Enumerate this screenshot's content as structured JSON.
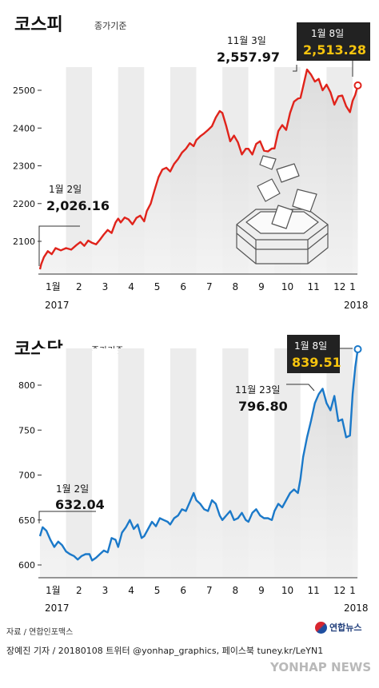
{
  "footer": {
    "source": "자료 / 연합인포맥스",
    "credit": "장예진 기자 / 20180108 트위터 @yonhap_graphics, 페이스북 tuney.kr/LeYN1",
    "logo": "연합뉴스",
    "watermark": "YONHAP NEWS"
  },
  "colors": {
    "kospi": "#e0231b",
    "kosdaq": "#1b79c9",
    "highlight_box": "#222222",
    "highlight_text": "#f6c40e"
  },
  "chart_data": [
    {
      "type": "line",
      "title": "코스피",
      "subtitle": "종가기준",
      "x_tick_labels": [
        "1월",
        "2",
        "3",
        "4",
        "5",
        "6",
        "7",
        "8",
        "9",
        "10",
        "11",
        "12",
        "1"
      ],
      "x_year_start": "2017",
      "x_year_end": "2018",
      "y_ticks": [
        2100,
        2200,
        2300,
        2400,
        2500
      ],
      "ylim": [
        2015,
        2575
      ],
      "grid": false,
      "annotations": [
        {
          "label": "1월 2일",
          "value_text": "2,026.16",
          "month_pos": 0,
          "value": 2026.16
        },
        {
          "label": "11월 3일",
          "value_text": "2,557.97",
          "month_pos": 10.1,
          "value": 2557.97
        },
        {
          "label": "1월 8일",
          "value_text": "2,513.28",
          "month_pos": 12.2,
          "value": 2513.28,
          "highlight": true
        }
      ],
      "series": [
        {
          "month_pos": [
            0,
            0.05,
            0.15,
            0.3,
            0.45,
            0.6,
            0.8,
            1.0,
            1.2,
            1.4,
            1.55,
            1.7,
            1.85,
            2.0,
            2.15,
            2.3,
            2.45,
            2.6,
            2.75,
            2.9,
            3.0,
            3.1,
            3.25,
            3.4,
            3.55,
            3.7,
            3.85,
            4.0,
            4.1,
            4.25,
            4.4,
            4.55,
            4.7,
            4.85,
            5.0,
            5.15,
            5.3,
            5.45,
            5.6,
            5.75,
            5.9,
            6.0,
            6.15,
            6.3,
            6.45,
            6.6,
            6.75,
            6.9,
            7.0,
            7.15,
            7.3,
            7.45,
            7.6,
            7.75,
            7.9,
            8.0,
            8.15,
            8.3,
            8.45,
            8.6,
            8.75,
            8.9,
            9.0,
            9.15,
            9.3,
            9.45,
            9.6,
            9.75,
            9.9,
            10.0,
            10.1,
            10.25,
            10.4,
            10.55,
            10.7,
            10.85,
            11.0,
            11.15,
            11.3,
            11.45,
            11.6,
            11.75,
            11.9,
            12.0,
            12.1,
            12.2
          ],
          "values": [
            2026,
            2040,
            2058,
            2074,
            2066,
            2082,
            2076,
            2082,
            2078,
            2090,
            2098,
            2088,
            2102,
            2096,
            2092,
            2104,
            2118,
            2130,
            2122,
            2150,
            2160,
            2150,
            2163,
            2158,
            2145,
            2162,
            2168,
            2153,
            2180,
            2200,
            2236,
            2270,
            2290,
            2295,
            2285,
            2305,
            2318,
            2335,
            2345,
            2360,
            2352,
            2368,
            2378,
            2386,
            2395,
            2405,
            2428,
            2445,
            2440,
            2405,
            2365,
            2380,
            2362,
            2330,
            2345,
            2345,
            2330,
            2358,
            2365,
            2340,
            2338,
            2346,
            2346,
            2392,
            2408,
            2395,
            2440,
            2470,
            2478,
            2480,
            2510,
            2555,
            2542,
            2523,
            2530,
            2500,
            2515,
            2495,
            2462,
            2484,
            2486,
            2458,
            2442,
            2472,
            2488,
            2513
          ]
        }
      ]
    },
    {
      "type": "line",
      "title": "코스닥",
      "subtitle": "종가기준",
      "x_tick_labels": [
        "1월",
        "2",
        "3",
        "4",
        "5",
        "6",
        "7",
        "8",
        "9",
        "10",
        "11",
        "12",
        "1"
      ],
      "x_year_start": "2017",
      "x_year_end": "2018",
      "y_ticks": [
        600,
        650,
        700,
        750,
        800
      ],
      "ylim": [
        588,
        842
      ],
      "grid": false,
      "annotations": [
        {
          "label": "1월 2일",
          "value_text": "632.04",
          "month_pos": 0,
          "value": 632.04
        },
        {
          "label": "11월 23일",
          "value_text": "796.80",
          "month_pos": 10.8,
          "value": 796.8
        },
        {
          "label": "1월 8일",
          "value_text": "839.51",
          "month_pos": 12.2,
          "value": 839.51,
          "highlight": true
        }
      ],
      "series": [
        {
          "month_pos": [
            0,
            0.1,
            0.25,
            0.4,
            0.55,
            0.7,
            0.85,
            1.0,
            1.15,
            1.3,
            1.45,
            1.6,
            1.75,
            1.9,
            2.0,
            2.15,
            2.3,
            2.45,
            2.6,
            2.75,
            2.9,
            3.0,
            3.15,
            3.3,
            3.45,
            3.6,
            3.75,
            3.9,
            4.0,
            4.15,
            4.3,
            4.45,
            4.6,
            4.75,
            4.9,
            5.0,
            5.15,
            5.3,
            5.45,
            5.6,
            5.75,
            5.9,
            6.0,
            6.15,
            6.3,
            6.45,
            6.6,
            6.75,
            6.9,
            7.0,
            7.15,
            7.3,
            7.45,
            7.6,
            7.75,
            7.9,
            8.0,
            8.15,
            8.3,
            8.45,
            8.6,
            8.75,
            8.9,
            9.0,
            9.15,
            9.3,
            9.45,
            9.6,
            9.75,
            9.9,
            10.0,
            10.1,
            10.25,
            10.4,
            10.55,
            10.7,
            10.85,
            11.0,
            11.15,
            11.3,
            11.45,
            11.6,
            11.75,
            11.9,
            12.0,
            12.1,
            12.2
          ],
          "values": [
            632,
            642,
            638,
            628,
            620,
            626,
            622,
            615,
            612,
            610,
            606,
            610,
            612,
            612,
            605,
            608,
            612,
            616,
            614,
            630,
            628,
            620,
            636,
            642,
            650,
            640,
            645,
            630,
            632,
            640,
            648,
            643,
            652,
            650,
            648,
            645,
            652,
            655,
            662,
            660,
            670,
            680,
            672,
            668,
            662,
            660,
            672,
            668,
            655,
            650,
            655,
            660,
            650,
            652,
            658,
            650,
            648,
            658,
            662,
            655,
            652,
            652,
            650,
            660,
            668,
            664,
            672,
            680,
            684,
            680,
            696,
            720,
            742,
            760,
            780,
            790,
            796,
            780,
            772,
            788,
            760,
            762,
            742,
            744,
            790,
            820,
            840
          ]
        }
      ]
    }
  ]
}
